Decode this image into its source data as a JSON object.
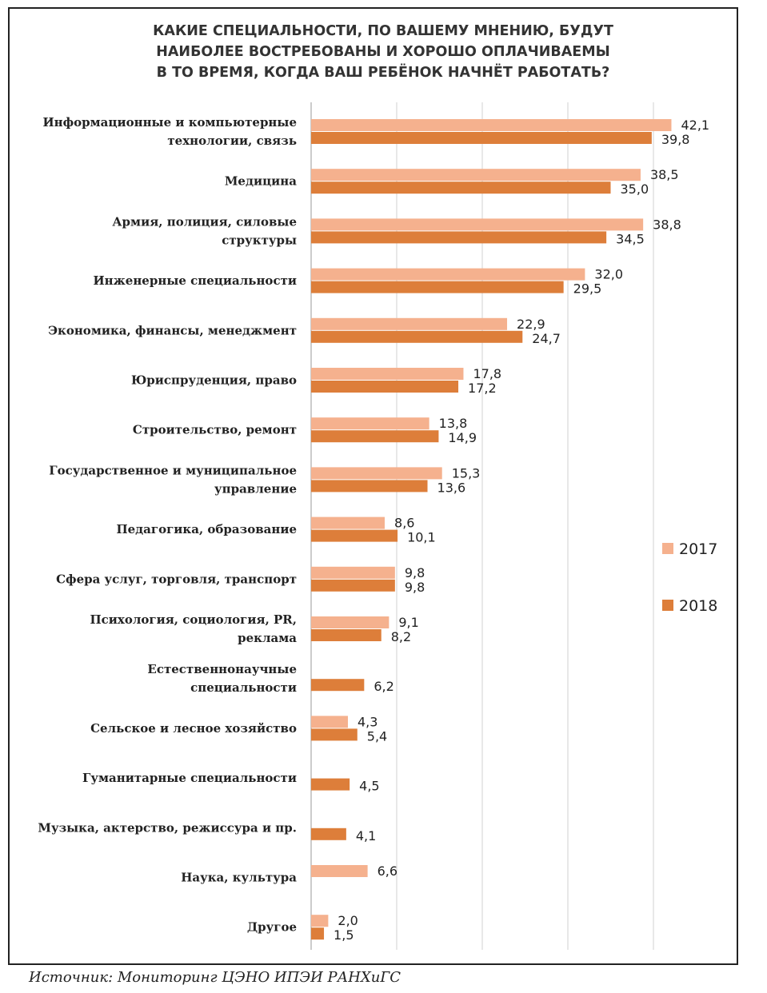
{
  "chart_data": {
    "type": "bar",
    "orientation": "horizontal",
    "title_lines": [
      "КАКИЕ СПЕЦИАЛЬНОСТИ, ПО ВАШЕМУ МНЕНИЮ, БУДУТ",
      "НАИБОЛЕЕ ВОСТРЕБОВАНЫ И ХОРОШО ОПЛАЧИВАЕМЫ",
      "В ТО ВРЕМЯ, КОГДА ВАШ РЕБЁНОК НАЧНЁТ РАБОТАТЬ?"
    ],
    "categories": [
      [
        "Информационные и компьютерные",
        "технологии, связь"
      ],
      [
        "Медицина"
      ],
      [
        "Армия, полиция, силовые",
        "структуры"
      ],
      [
        "Инженерные специальности"
      ],
      [
        "Экономика, финансы, менеджмент"
      ],
      [
        "Юриспруденция, право"
      ],
      [
        "Строительство, ремонт"
      ],
      [
        "Государственное и муниципальное",
        "управление"
      ],
      [
        "Педагогика, образование"
      ],
      [
        "Сфера услуг, торговля, транспорт"
      ],
      [
        "Психология, социология, PR,",
        "реклама"
      ],
      [
        "Естественнонаучные",
        "специальности"
      ],
      [
        "Сельское и лесное хозяйство"
      ],
      [
        "Гуманитарные специальности"
      ],
      [
        "Музыка, актерство, режиссура и пр."
      ],
      [
        "Наука, культура"
      ],
      [
        "Другое"
      ]
    ],
    "series": [
      {
        "name": "2017",
        "color": "#f5b18e",
        "values": [
          42.1,
          38.5,
          38.8,
          32.0,
          22.9,
          17.8,
          13.8,
          15.3,
          8.6,
          9.8,
          9.1,
          null,
          4.3,
          null,
          null,
          6.6,
          2.0
        ],
        "labels": [
          "42,1",
          "38,5",
          "38,8",
          "32,0",
          "22,9",
          "17,8",
          "13,8",
          "15,3",
          "8,6",
          "9,8",
          "9,1",
          null,
          "4,3",
          null,
          null,
          "6,6",
          "2,0"
        ]
      },
      {
        "name": "2018",
        "color": "#dd7e3a",
        "values": [
          39.8,
          35.0,
          34.5,
          29.5,
          24.7,
          17.2,
          14.9,
          13.6,
          10.1,
          9.8,
          8.2,
          6.2,
          5.4,
          4.5,
          4.1,
          null,
          1.5
        ],
        "labels": [
          "39,8",
          "35,0",
          "34,5",
          "29,5",
          "24,7",
          "17,2",
          "14,9",
          "13,6",
          "10,1",
          "9,8",
          "8,2",
          "6,2",
          "5,4",
          "4,5",
          "4,1",
          null,
          "1,5"
        ]
      }
    ],
    "xlim": [
      0,
      45
    ],
    "gridlines": [
      0,
      10,
      20,
      30,
      40
    ],
    "grid": true,
    "legend_position": "right"
  },
  "source_text": "Источник: Мониторинг ЦЭНО ИПЭИ РАНХиГС"
}
